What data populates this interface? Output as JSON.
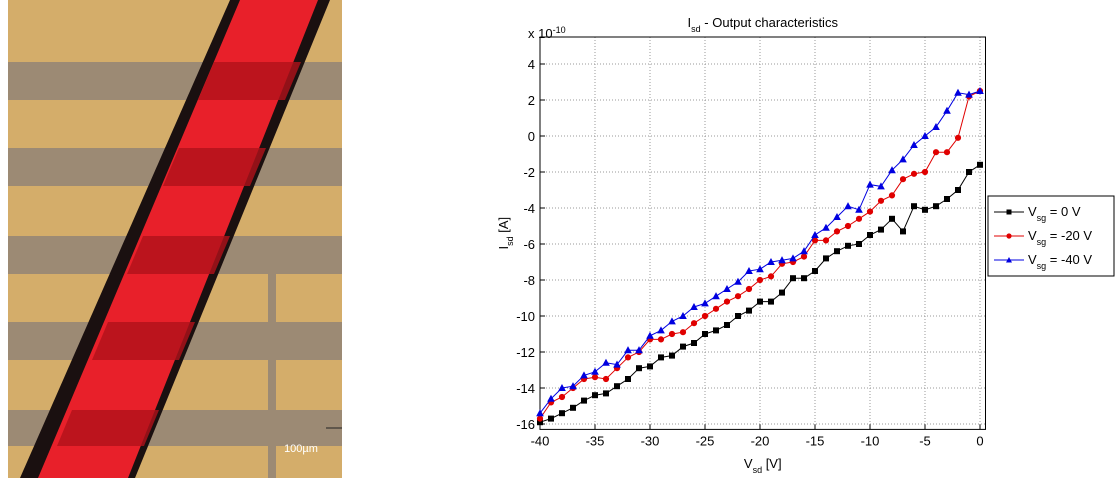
{
  "scale_bar_label": "100µm",
  "chart_data": {
    "type": "line",
    "title": {
      "base": "I",
      "sub": "sd",
      "rest": " - Output characteristics"
    },
    "x_label": {
      "base": "V",
      "sub": "sd",
      "rest": " [V]"
    },
    "y_label": {
      "base": "I",
      "sub": "sd",
      "rest": " [A]"
    },
    "y_multiplier": {
      "base": "x 10",
      "exponent": "-10"
    },
    "x": [
      -40,
      -39,
      -38,
      -37,
      -36,
      -35,
      -34,
      -33,
      -32,
      -31,
      -30,
      -29,
      -28,
      -27,
      -26,
      -25,
      -24,
      -23,
      -22,
      -21,
      -20,
      -19,
      -18,
      -17,
      -16,
      -15,
      -14,
      -13,
      -12,
      -11,
      -10,
      -9,
      -8,
      -7,
      -6,
      -5,
      -4,
      -3,
      -2,
      -1,
      0
    ],
    "series": [
      {
        "name": {
          "base": "V",
          "sub": "sg",
          "rest": " = 0 V"
        },
        "color": "#000000",
        "marker": "square",
        "values": [
          -15.9,
          -15.7,
          -15.4,
          -15.1,
          -14.7,
          -14.4,
          -14.3,
          -13.9,
          -13.5,
          -12.9,
          -12.8,
          -12.3,
          -12.2,
          -11.7,
          -11.5,
          -11.0,
          -10.8,
          -10.5,
          -10.0,
          -9.7,
          -9.2,
          -9.2,
          -8.7,
          -7.9,
          -7.9,
          -7.5,
          -6.8,
          -6.4,
          -6.1,
          -6.0,
          -5.5,
          -5.2,
          -4.6,
          -5.3,
          -3.9,
          -4.1,
          -3.9,
          -3.5,
          -3.0,
          -2.0,
          -1.6
        ]
      },
      {
        "name": {
          "base": "V",
          "sub": "sg",
          "rest": " = -20 V"
        },
        "color": "#e00000",
        "marker": "circle",
        "values": [
          -15.7,
          -14.8,
          -14.5,
          -14.0,
          -13.5,
          -13.4,
          -13.5,
          -12.9,
          -12.3,
          -12.0,
          -11.3,
          -11.3,
          -11.0,
          -10.9,
          -10.4,
          -10.0,
          -9.6,
          -9.2,
          -8.9,
          -8.5,
          -8.0,
          -7.8,
          -7.1,
          -7.0,
          -6.7,
          -5.8,
          -5.8,
          -5.3,
          -5.0,
          -4.6,
          -4.2,
          -3.6,
          -3.3,
          -2.4,
          -2.1,
          -2.0,
          -0.9,
          -0.9,
          -0.1,
          2.2,
          2.5
        ]
      },
      {
        "name": {
          "base": "V",
          "sub": "sg",
          "rest": " = -40 V"
        },
        "color": "#0000e0",
        "marker": "triangle",
        "values": [
          -15.4,
          -14.6,
          -14.0,
          -13.9,
          -13.3,
          -13.1,
          -12.6,
          -12.7,
          -11.9,
          -11.9,
          -11.1,
          -10.8,
          -10.3,
          -10.0,
          -9.5,
          -9.3,
          -8.9,
          -8.5,
          -8.1,
          -7.5,
          -7.4,
          -7.0,
          -6.9,
          -6.8,
          -6.4,
          -5.5,
          -5.1,
          -4.5,
          -3.9,
          -4.1,
          -2.7,
          -2.8,
          -1.9,
          -1.3,
          -0.5,
          0.0,
          0.5,
          1.4,
          2.4,
          2.3,
          2.5
        ]
      }
    ],
    "xlim": [
      -40,
      0.5
    ],
    "xticks": [
      -40,
      -35,
      -30,
      -25,
      -20,
      -15,
      -10,
      -5,
      0
    ],
    "ylim": [
      -16.3,
      5.5
    ],
    "yticks": [
      -16,
      -14,
      -12,
      -10,
      -8,
      -6,
      -4,
      -2,
      0,
      2,
      4
    ],
    "grid": true,
    "legend": "outside-right"
  }
}
